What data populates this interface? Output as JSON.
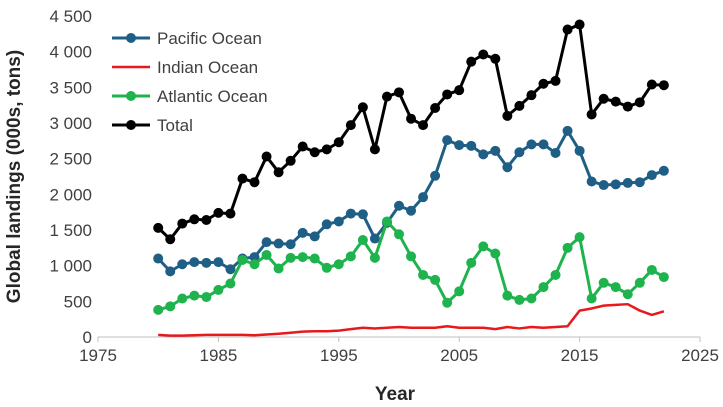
{
  "chart_data": {
    "type": "line",
    "xlabel": "Year",
    "ylabel": "Global landings (000s, tons)",
    "xlim": [
      1975,
      2025
    ],
    "ylim": [
      0,
      4500
    ],
    "x_ticks": [
      1975,
      1985,
      1995,
      2005,
      2015,
      2025
    ],
    "y_ticks": [
      0,
      500,
      1000,
      1500,
      2000,
      2500,
      3000,
      3500,
      4000,
      4500
    ],
    "y_tick_labels": [
      "0",
      "500",
      "1 000",
      "1 500",
      "2 000",
      "2 500",
      "3 000",
      "3 500",
      "4 000",
      "4 500"
    ],
    "x_tick_labels": [
      "1975",
      "1985",
      "1995",
      "2005",
      "2015",
      "2025"
    ],
    "grid": false,
    "legend_position": "top-left",
    "x": [
      1980,
      1981,
      1982,
      1983,
      1984,
      1985,
      1986,
      1987,
      1988,
      1989,
      1990,
      1991,
      1992,
      1993,
      1994,
      1995,
      1996,
      1997,
      1998,
      1999,
      2000,
      2001,
      2002,
      2003,
      2004,
      2005,
      2006,
      2007,
      2008,
      2009,
      2010,
      2011,
      2012,
      2013,
      2014,
      2015,
      2016,
      2017,
      2018,
      2019,
      2020,
      2021,
      2022
    ],
    "series": [
      {
        "name": "Pacific Ocean",
        "color": "#1f5f86",
        "markers": true,
        "values": [
          1100,
          920,
          1020,
          1050,
          1040,
          1050,
          950,
          1100,
          1120,
          1330,
          1310,
          1300,
          1460,
          1410,
          1580,
          1620,
          1730,
          1720,
          1380,
          1600,
          1840,
          1770,
          1960,
          2260,
          2760,
          2690,
          2680,
          2560,
          2610,
          2380,
          2590,
          2700,
          2700,
          2580,
          2890,
          2610,
          2180,
          2130,
          2140,
          2160,
          2170,
          2270,
          2330
        ]
      },
      {
        "name": "Indian Ocean",
        "color": "#e8191b",
        "markers": false,
        "values": [
          30,
          20,
          20,
          25,
          30,
          30,
          30,
          30,
          25,
          35,
          45,
          60,
          75,
          80,
          80,
          90,
          110,
          130,
          120,
          130,
          140,
          130,
          130,
          130,
          150,
          130,
          130,
          130,
          110,
          140,
          120,
          140,
          130,
          140,
          150,
          370,
          400,
          440,
          450,
          460,
          370,
          310,
          360
        ]
      },
      {
        "name": "Atlantic Ocean",
        "color": "#1fb34d",
        "markers": true,
        "values": [
          380,
          430,
          540,
          580,
          560,
          660,
          750,
          1080,
          1020,
          1150,
          960,
          1110,
          1120,
          1100,
          970,
          1020,
          1130,
          1360,
          1110,
          1620,
          1440,
          1130,
          870,
          800,
          480,
          640,
          1040,
          1270,
          1170,
          580,
          520,
          540,
          700,
          870,
          1250,
          1400,
          540,
          760,
          700,
          600,
          760,
          940,
          840
        ]
      },
      {
        "name": "Total",
        "color": "#000000",
        "markers": true,
        "values": [
          1530,
          1370,
          1590,
          1650,
          1640,
          1740,
          1730,
          2220,
          2170,
          2530,
          2310,
          2470,
          2670,
          2590,
          2630,
          2730,
          2970,
          3220,
          2630,
          3370,
          3430,
          3060,
          2970,
          3210,
          3400,
          3460,
          3860,
          3960,
          3900,
          3100,
          3240,
          3390,
          3550,
          3590,
          4310,
          4380,
          3120,
          3340,
          3300,
          3230,
          3290,
          3540,
          3530
        ]
      }
    ]
  }
}
